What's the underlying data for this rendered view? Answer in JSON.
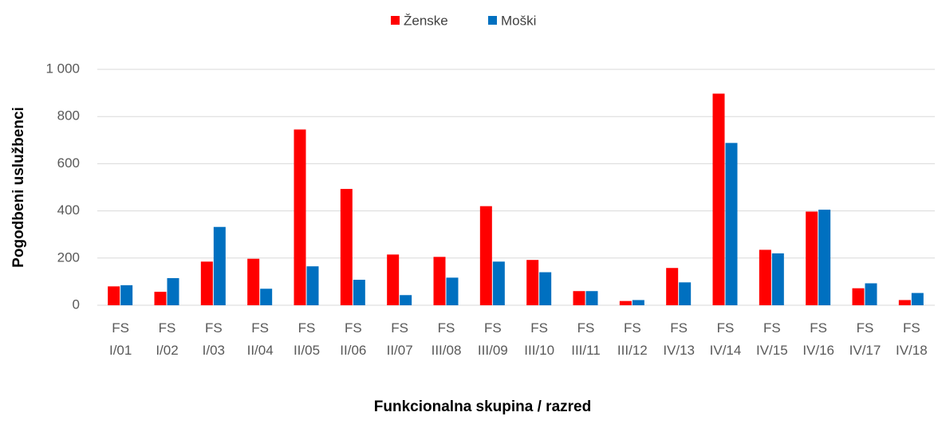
{
  "chart_data": {
    "type": "bar",
    "x_label": "Funkcionalna skupina / razred",
    "y_label": "Pogodbeni uslužbenci",
    "categories": [
      "FS I/01",
      "FS I/02",
      "FS I/03",
      "FS II/04",
      "FS II/05",
      "FS II/06",
      "FS II/07",
      "FS III/08",
      "FS III/09",
      "FS III/10",
      "FS III/11",
      "FS III/12",
      "FS IV/13",
      "FS IV/14",
      "FS IV/15",
      "FS IV/16",
      "FS IV/17",
      "FS IV/18"
    ],
    "series": [
      {
        "name": "Ženske",
        "color": "#ff0000",
        "values": [
          80,
          57,
          185,
          197,
          745,
          493,
          215,
          205,
          420,
          192,
          60,
          18,
          158,
          897,
          235,
          397,
          72,
          22
        ]
      },
      {
        "name": "Moški",
        "color": "#0070c0",
        "values": [
          85,
          115,
          332,
          70,
          165,
          108,
          43,
          117,
          185,
          140,
          60,
          22,
          97,
          688,
          220,
          405,
          93,
          52
        ]
      }
    ],
    "ylim": [
      0,
      1000
    ],
    "yticks": [
      0,
      200,
      400,
      600,
      800,
      {
        "value": 1000,
        "label": "1 000"
      }
    ],
    "grid": true,
    "legend": "top"
  }
}
